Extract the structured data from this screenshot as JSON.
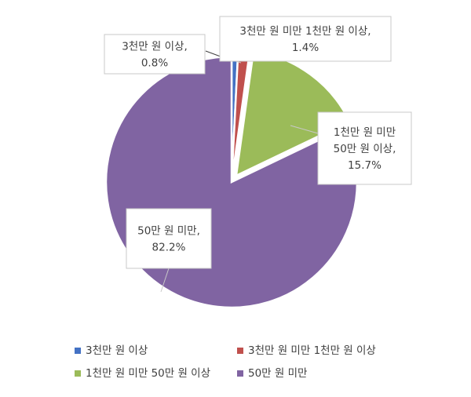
{
  "chart_data": {
    "type": "pie",
    "slices": [
      {
        "name": "3천만 원 이상",
        "value": 0.8,
        "label_lines": [
          "3천만 원 이상,",
          "0.8%"
        ],
        "color": "#4472C4"
      },
      {
        "name": "3천만 원 미만 1천만 원 이상",
        "value": 1.4,
        "label_lines": [
          "3천만 원 미만 1천만 원 이상,",
          "1.4%"
        ],
        "color": "#C0504D"
      },
      {
        "name": "1천만 원 미만 50만 원 이상",
        "value": 15.7,
        "label_lines": [
          "1천만 원 미만",
          "50만 원 이상,",
          "15.7%"
        ],
        "color": "#9BBB59"
      },
      {
        "name": "50만 원 미만",
        "value": 82.2,
        "label_lines": [
          "50만 원 미만,",
          "82.2%"
        ],
        "color": "#8064A2"
      }
    ],
    "start_angle_deg": 0,
    "direction": "clockwise",
    "exploded": [
      "1천만 원 미만 50만 원 이상"
    ],
    "legend_position": "bottom",
    "legend_layout_rows": [
      [
        "3천만 원 이상",
        "3천만 원 미만 1천만 원 이상"
      ],
      [
        "1천만 원 미만 50만 원 이상",
        "50만 원 미만"
      ]
    ]
  }
}
